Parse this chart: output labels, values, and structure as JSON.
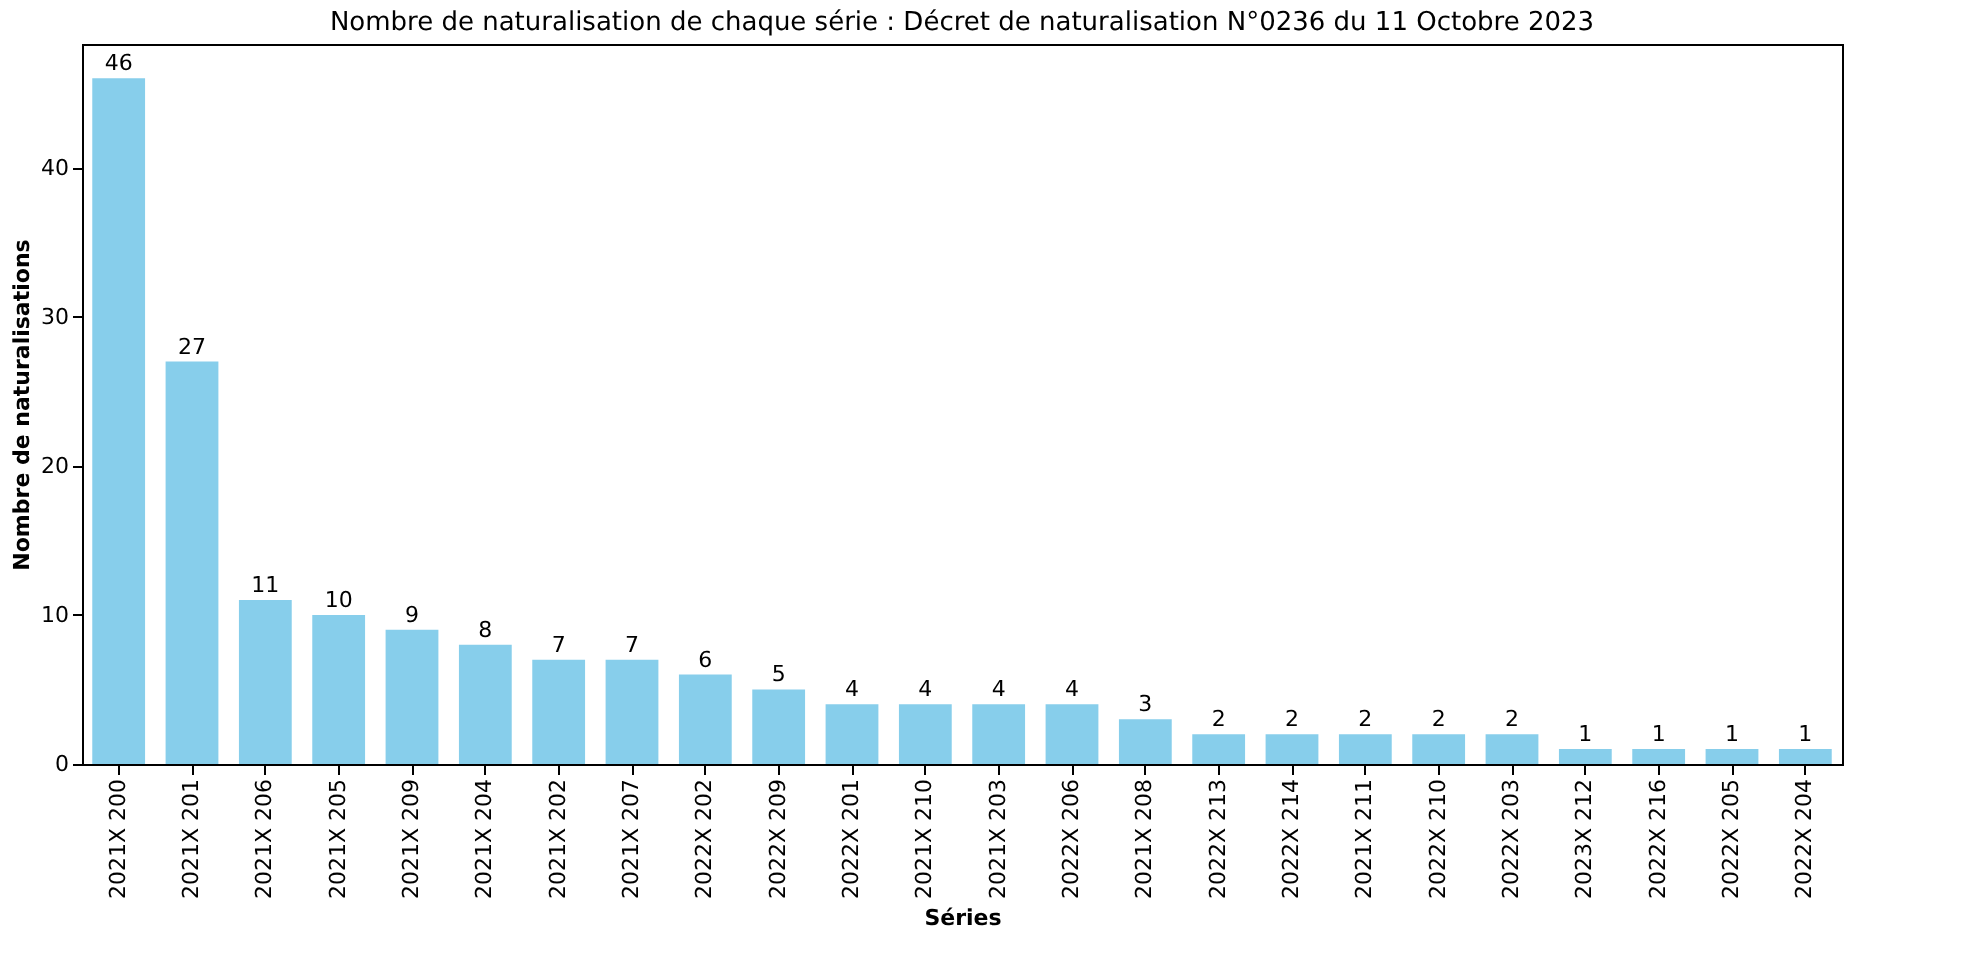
{
  "chart_data": {
    "type": "bar",
    "title": "Nombre de naturalisation de chaque série : Décret de naturalisation N°0236 du 11 Octobre 2023",
    "xlabel": "Séries",
    "ylabel": "Nombre de naturalisations",
    "categories": [
      "2021X 200",
      "2021X 201",
      "2021X 206",
      "2021X 205",
      "2021X 209",
      "2021X 204",
      "2021X 202",
      "2021X 207",
      "2022X 202",
      "2022X 209",
      "2022X 201",
      "2021X 210",
      "2021X 203",
      "2022X 206",
      "2021X 208",
      "2022X 213",
      "2022X 214",
      "2021X 211",
      "2022X 210",
      "2022X 203",
      "2023X 212",
      "2022X 216",
      "2022X 205",
      "2022X 204"
    ],
    "values": [
      46,
      27,
      11,
      10,
      9,
      8,
      7,
      7,
      6,
      5,
      4,
      4,
      4,
      4,
      3,
      2,
      2,
      2,
      2,
      2,
      1,
      1,
      1,
      1
    ],
    "color": "#87ceeb",
    "ylim": [
      0,
      48.3
    ],
    "yticks": [
      0,
      10,
      20,
      30,
      40
    ],
    "grid": false,
    "data_labels": true
  }
}
